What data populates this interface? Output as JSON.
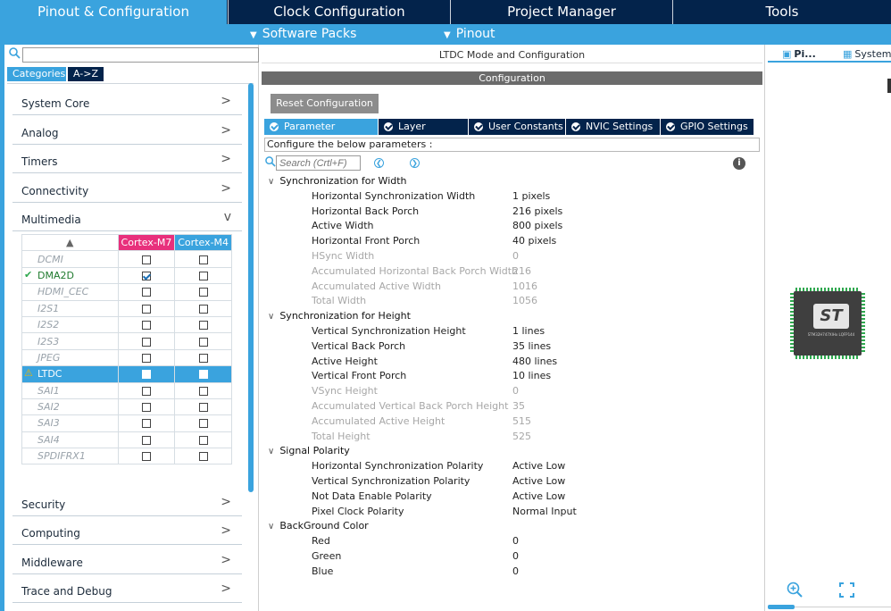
{
  "top_nav": {
    "tabs": [
      {
        "label": "Pinout & Configuration",
        "active": true
      },
      {
        "label": "Clock Configuration",
        "active": false
      },
      {
        "label": "Project Manager",
        "active": false
      },
      {
        "label": "Tools",
        "active": false
      }
    ]
  },
  "sub_nav": {
    "software_packs": "Software Packs",
    "pinout": "Pinout"
  },
  "left_panel": {
    "search_placeholder": "",
    "tabs": [
      "Categories",
      "A->Z"
    ],
    "categories_top": [
      {
        "label": "System Core",
        "arrow": ">"
      },
      {
        "label": "Analog",
        "arrow": ">"
      },
      {
        "label": "Timers",
        "arrow": ">"
      },
      {
        "label": "Connectivity",
        "arrow": ">"
      },
      {
        "label": "Multimedia",
        "arrow": "v"
      }
    ],
    "multimedia_table": {
      "sort_header": "▲",
      "columns": [
        "Cortex-M7",
        "Cortex-M4"
      ],
      "column_colors": [
        "#e8307c",
        "#3aa3de"
      ],
      "rows": [
        {
          "name": "DCMI",
          "prefix": "",
          "m7": false,
          "m4": false,
          "state": "disabled"
        },
        {
          "name": "DMA2D",
          "prefix": "✔",
          "m7": true,
          "m4": false,
          "state": "enabled"
        },
        {
          "name": "HDMI_CEC",
          "prefix": "",
          "m7": false,
          "m4": false,
          "state": "disabled"
        },
        {
          "name": "I2S1",
          "prefix": "",
          "m7": false,
          "m4": false,
          "state": "disabled"
        },
        {
          "name": "I2S2",
          "prefix": "",
          "m7": false,
          "m4": false,
          "state": "disabled"
        },
        {
          "name": "I2S3",
          "prefix": "",
          "m7": false,
          "m4": false,
          "state": "disabled"
        },
        {
          "name": "JPEG",
          "prefix": "",
          "m7": false,
          "m4": false,
          "state": "disabled"
        },
        {
          "name": "LTDC",
          "prefix": "⚠",
          "m7": true,
          "m4": false,
          "state": "selected"
        },
        {
          "name": "SAI1",
          "prefix": "",
          "m7": false,
          "m4": false,
          "state": "disabled"
        },
        {
          "name": "SAI2",
          "prefix": "",
          "m7": false,
          "m4": false,
          "state": "disabled"
        },
        {
          "name": "SAI3",
          "prefix": "",
          "m7": false,
          "m4": false,
          "state": "disabled"
        },
        {
          "name": "SAI4",
          "prefix": "",
          "m7": false,
          "m4": false,
          "state": "disabled"
        },
        {
          "name": "SPDIFRX1",
          "prefix": "",
          "m7": false,
          "m4": false,
          "state": "disabled"
        }
      ]
    },
    "categories_bottom": [
      {
        "label": "Security",
        "arrow": ">"
      },
      {
        "label": "Computing",
        "arrow": ">"
      },
      {
        "label": "Middleware",
        "arrow": ">"
      },
      {
        "label": "Trace and Debug",
        "arrow": ">"
      }
    ]
  },
  "mid_panel": {
    "title": "LTDC Mode and Configuration",
    "config_bar": "Configuration",
    "reset_button": "Reset Configuration",
    "param_tabs": [
      "Parameter Settings",
      "Layer Settings",
      "User Constants",
      "NVIC Settings",
      "GPIO Settings"
    ],
    "configure_label": "Configure the below parameters :",
    "search_placeholder": "Search (Crtl+F)",
    "groups": [
      {
        "name": "Synchronization for Width",
        "params": [
          {
            "name": "Horizontal Synchronization Width",
            "value": "1 pixels",
            "dim": false
          },
          {
            "name": "Horizontal Back Porch",
            "value": "216 pixels",
            "dim": false
          },
          {
            "name": "Active Width",
            "value": "800 pixels",
            "dim": false
          },
          {
            "name": "Horizontal Front Porch",
            "value": "40 pixels",
            "dim": false
          },
          {
            "name": "HSync Width",
            "value": "0",
            "dim": true
          },
          {
            "name": "Accumulated Horizontal Back Porch Width",
            "value": "216",
            "dim": true
          },
          {
            "name": "Accumulated Active Width",
            "value": "1016",
            "dim": true
          },
          {
            "name": "Total Width",
            "value": "1056",
            "dim": true
          }
        ]
      },
      {
        "name": "Synchronization for Height",
        "params": [
          {
            "name": "Vertical Synchronization Height",
            "value": "1 lines",
            "dim": false
          },
          {
            "name": "Vertical Back Porch",
            "value": "35 lines",
            "dim": false
          },
          {
            "name": "Active Height",
            "value": "480 lines",
            "dim": false
          },
          {
            "name": "Vertical Front Porch",
            "value": "10 lines",
            "dim": false
          },
          {
            "name": "VSync Height",
            "value": "0",
            "dim": true
          },
          {
            "name": "Accumulated Vertical Back Porch Height",
            "value": "35",
            "dim": true
          },
          {
            "name": "Accumulated Active Height",
            "value": "515",
            "dim": true
          },
          {
            "name": "Total Height",
            "value": "525",
            "dim": true
          }
        ]
      },
      {
        "name": "Signal Polarity",
        "params": [
          {
            "name": "Horizontal Synchronization Polarity",
            "value": "Active Low",
            "dim": false
          },
          {
            "name": "Vertical Synchronization Polarity",
            "value": "Active Low",
            "dim": false
          },
          {
            "name": "Not Data Enable Polarity",
            "value": "Active Low",
            "dim": false
          },
          {
            "name": "Pixel Clock Polarity",
            "value": "Normal Input",
            "dim": false
          }
        ]
      },
      {
        "name": "BackGround Color",
        "params": [
          {
            "name": "Red",
            "value": "0",
            "dim": false
          },
          {
            "name": "Green",
            "value": "0",
            "dim": false
          },
          {
            "name": "Blue",
            "value": "0",
            "dim": false
          }
        ]
      }
    ]
  },
  "right_panel": {
    "tabs": [
      "Pi...",
      "System"
    ],
    "chip_logo": "ST",
    "chip_part": "STM32H747XIHx LQFP144"
  },
  "colors": {
    "nav_dark": "#03234b",
    "accent": "#3aa3de",
    "m7_header": "#e8307c",
    "m4_header": "#3aa3de"
  }
}
